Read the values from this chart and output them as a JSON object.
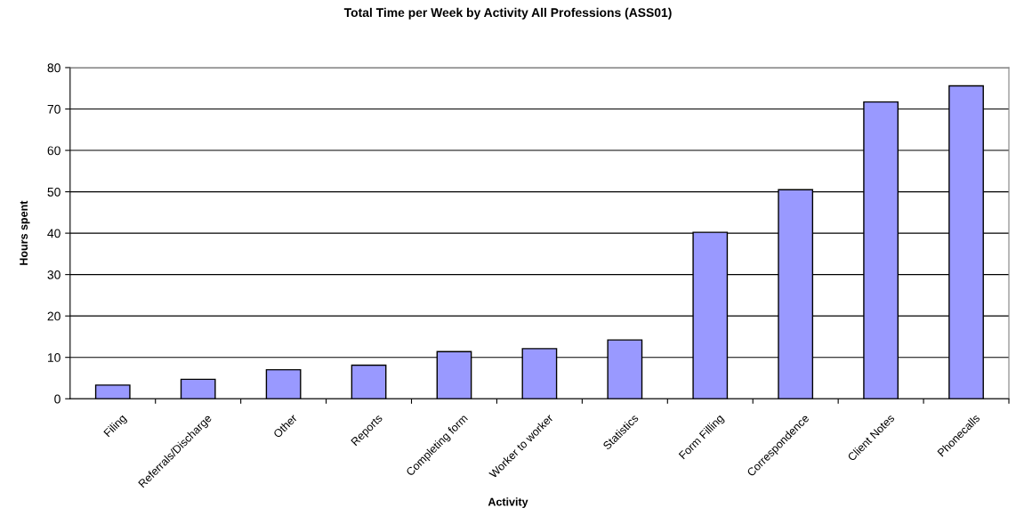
{
  "chart_data": {
    "type": "bar",
    "title": "Total Time per Week by Activity All Professions (ASS01)",
    "xlabel": "Activity",
    "ylabel": "Hours spent",
    "categories": [
      "Filing",
      "Referrals/Discharge",
      "Other",
      "Reports",
      "Completing form",
      "Worker to worker",
      "Statistics",
      "Form Filling",
      "Correspondence",
      "Client Notes",
      "Phonecalls"
    ],
    "values": [
      3.3,
      4.7,
      7.0,
      8.1,
      11.4,
      12.1,
      14.2,
      40.2,
      50.5,
      71.7,
      75.6
    ],
    "color": "#9999ff",
    "ylim": [
      0,
      80
    ],
    "yticks": [
      0,
      10,
      20,
      30,
      40,
      50,
      60,
      70,
      80
    ],
    "grid": "y",
    "legend": false
  }
}
